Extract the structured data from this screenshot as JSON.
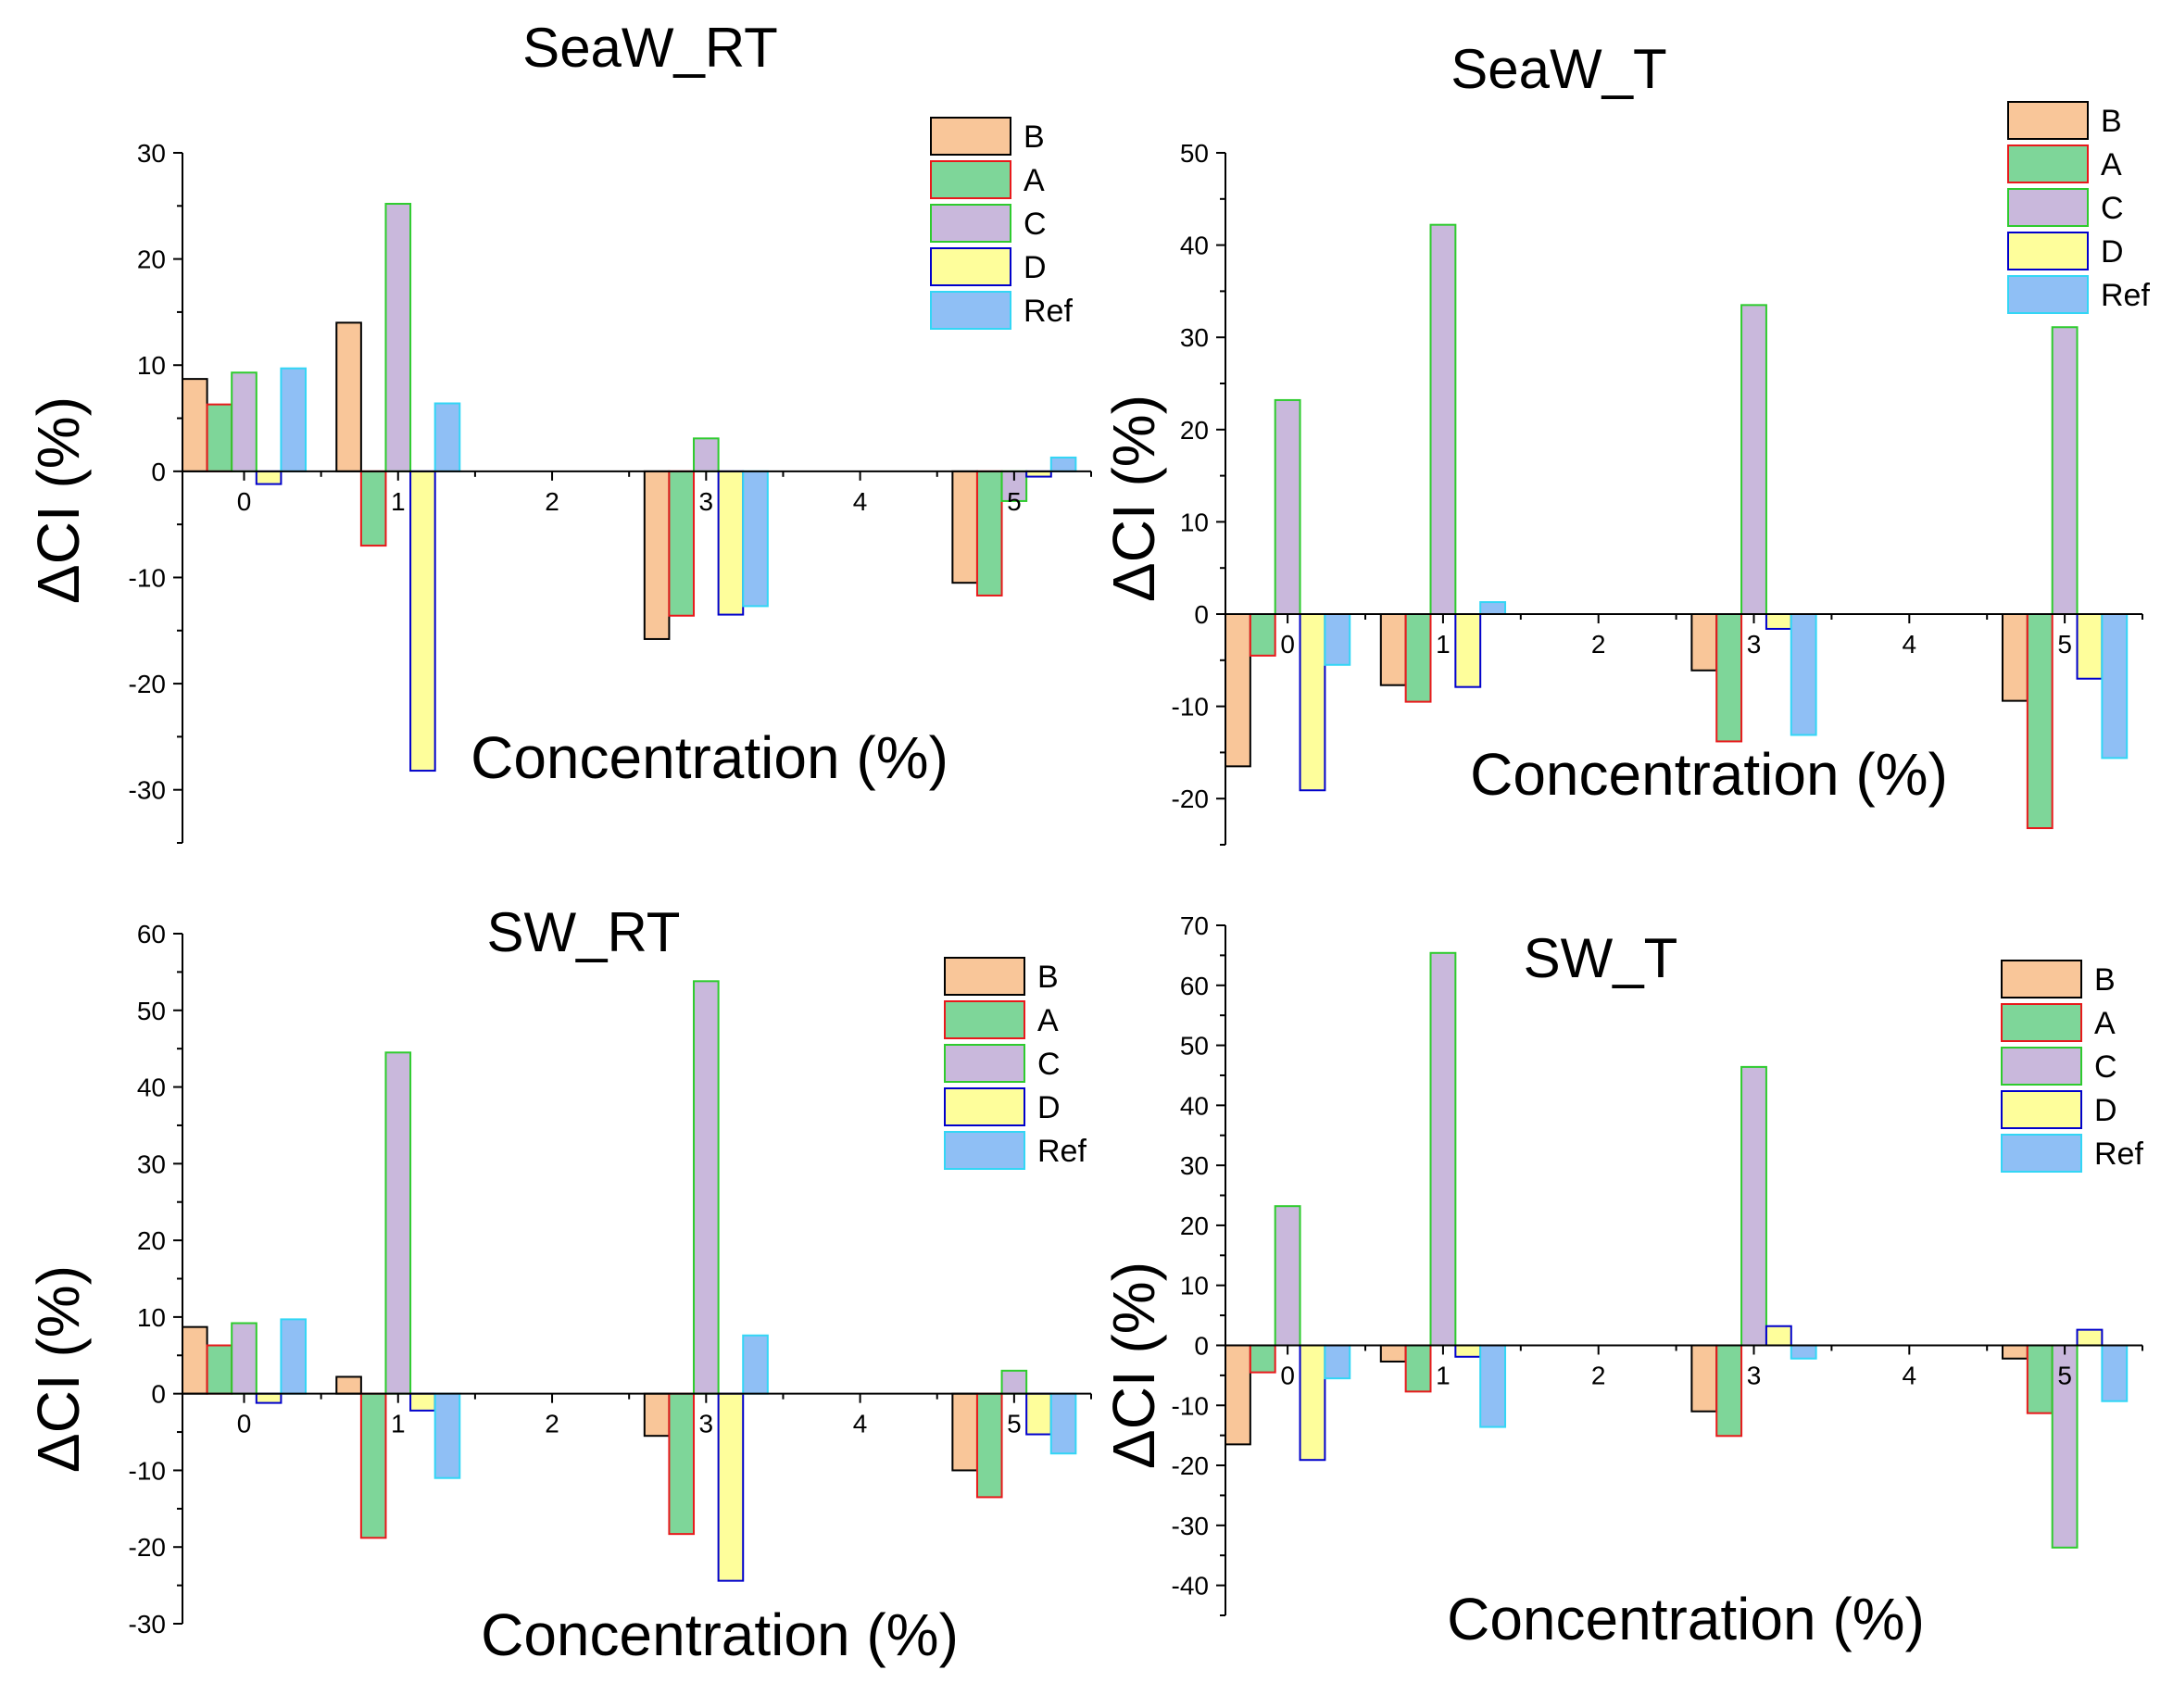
{
  "chart_data": [
    {
      "type": "bar",
      "title": "SeaW_RT",
      "xlabel": "Concentration (%)",
      "ylabel": "ΔCI (%)",
      "xlim": [
        -0.4,
        5.5
      ],
      "ylim": [
        -35,
        30
      ],
      "yticks": [
        -30,
        -20,
        -10,
        0,
        10,
        20,
        30
      ],
      "xticks": [
        0,
        1,
        2,
        3,
        4,
        5
      ],
      "x": [
        0,
        1,
        3,
        5
      ],
      "legend_position": "top-right",
      "series": [
        {
          "name": "B",
          "fill": "#F9C699",
          "stroke": "#000000",
          "values": [
            8.7,
            14,
            -15.8,
            -10.5
          ]
        },
        {
          "name": "A",
          "fill": "#7ED699",
          "stroke": "#E8191B",
          "values": [
            6.3,
            -7.0,
            -13.6,
            -11.7
          ]
        },
        {
          "name": "C",
          "fill": "#C9B8DC",
          "stroke": "#2ECB2E",
          "values": [
            9.3,
            25.2,
            3.1,
            -2.8
          ]
        },
        {
          "name": "D",
          "fill": "#FEFE9B",
          "stroke": "#0000CC",
          "values": [
            -1.2,
            -28.2,
            -13.5,
            -0.5
          ]
        },
        {
          "name": "Ref",
          "fill": "#8FBFF5",
          "stroke": "#33D6F5",
          "values": [
            9.7,
            6.4,
            -12.7,
            1.3
          ]
        }
      ]
    },
    {
      "type": "bar",
      "title": "SeaW_T",
      "xlabel": "Concentration (%)",
      "ylabel": "ΔCI (%)",
      "xlim": [
        -0.4,
        5.5
      ],
      "ylim": [
        -25,
        50
      ],
      "yticks": [
        -20,
        -10,
        0,
        10,
        20,
        30,
        40,
        50
      ],
      "xticks": [
        0,
        1,
        2,
        3,
        4,
        5
      ],
      "x": [
        0,
        1,
        3,
        5
      ],
      "legend_position": "top-right",
      "series": [
        {
          "name": "B",
          "fill": "#F9C699",
          "stroke": "#000000",
          "values": [
            -16.5,
            -7.7,
            -6.1,
            -9.4
          ]
        },
        {
          "name": "A",
          "fill": "#7ED699",
          "stroke": "#E8191B",
          "values": [
            -4.5,
            -9.5,
            -13.8,
            -23.2
          ]
        },
        {
          "name": "C",
          "fill": "#C9B8DC",
          "stroke": "#2ECB2E",
          "values": [
            23.2,
            42.2,
            33.5,
            31.1
          ]
        },
        {
          "name": "D",
          "fill": "#FEFE9B",
          "stroke": "#0000CC",
          "values": [
            -19.1,
            -7.9,
            -1.6,
            -7.0
          ]
        },
        {
          "name": "Ref",
          "fill": "#8FBFF5",
          "stroke": "#33D6F5",
          "values": [
            -5.5,
            1.3,
            -13.1,
            -15.6
          ]
        }
      ]
    },
    {
      "type": "bar",
      "title": "SW_RT",
      "xlabel": "Concentration (%)",
      "ylabel": "ΔCI (%)",
      "xlim": [
        -0.4,
        5.5
      ],
      "ylim": [
        -30,
        60
      ],
      "yticks": [
        -30,
        -20,
        -10,
        0,
        10,
        20,
        30,
        40,
        50,
        60
      ],
      "xticks": [
        0,
        1,
        2,
        3,
        4,
        5
      ],
      "x": [
        0,
        1,
        3,
        5
      ],
      "legend_position": "top-right",
      "series": [
        {
          "name": "B",
          "fill": "#F9C699",
          "stroke": "#000000",
          "values": [
            8.7,
            2.2,
            -5.5,
            -10.0
          ]
        },
        {
          "name": "A",
          "fill": "#7ED699",
          "stroke": "#E8191B",
          "values": [
            6.3,
            -18.8,
            -18.3,
            -13.5
          ]
        },
        {
          "name": "C",
          "fill": "#C9B8DC",
          "stroke": "#2ECB2E",
          "values": [
            9.2,
            44.5,
            53.8,
            3.0
          ]
        },
        {
          "name": "D",
          "fill": "#FEFE9B",
          "stroke": "#0000CC",
          "values": [
            -1.2,
            -2.2,
            -24.4,
            -5.3
          ]
        },
        {
          "name": "Ref",
          "fill": "#8FBFF5",
          "stroke": "#33D6F5",
          "values": [
            9.7,
            -11.0,
            7.6,
            -7.8
          ]
        }
      ]
    },
    {
      "type": "bar",
      "title": "SW_T",
      "xlabel": "Concentration (%)",
      "ylabel": "ΔCI (%)",
      "xlim": [
        -0.4,
        5.5
      ],
      "ylim": [
        -45,
        70
      ],
      "yticks": [
        -40,
        -30,
        -20,
        -10,
        0,
        10,
        20,
        30,
        40,
        50,
        60,
        70
      ],
      "xticks": [
        0,
        1,
        2,
        3,
        4,
        5
      ],
      "x": [
        0,
        1,
        3,
        5
      ],
      "legend_position": "top-right",
      "series": [
        {
          "name": "B",
          "fill": "#F9C699",
          "stroke": "#000000",
          "values": [
            -16.5,
            -2.7,
            -11.0,
            -2.2
          ]
        },
        {
          "name": "A",
          "fill": "#7ED699",
          "stroke": "#E8191B",
          "values": [
            -4.5,
            -7.7,
            -15.1,
            -11.3
          ]
        },
        {
          "name": "C",
          "fill": "#C9B8DC",
          "stroke": "#2ECB2E",
          "values": [
            23.2,
            65.4,
            46.4,
            -33.7
          ]
        },
        {
          "name": "D",
          "fill": "#FEFE9B",
          "stroke": "#0000CC",
          "values": [
            -19.1,
            -1.9,
            3.2,
            2.6
          ]
        },
        {
          "name": "Ref",
          "fill": "#8FBFF5",
          "stroke": "#33D6F5",
          "values": [
            -5.5,
            -13.6,
            -2.2,
            -9.3
          ]
        }
      ]
    }
  ]
}
